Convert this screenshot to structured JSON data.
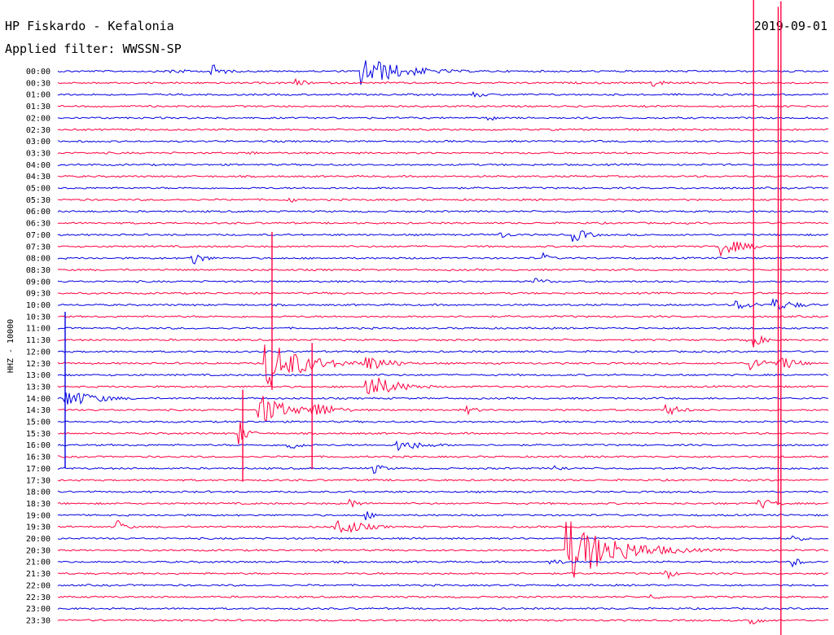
{
  "chart_data": {
    "type": "line",
    "title": "HP Fiskardo - Kefalonia",
    "date": "2019-09-01",
    "filter_label": "Applied filter: WWSSN-SP",
    "ylabel": "HHZ - 10000",
    "colors": {
      "even": "#0000e0",
      "odd": "#ff0040"
    },
    "rows": [
      "00:00",
      "00:30",
      "01:00",
      "01:30",
      "02:00",
      "02:30",
      "03:00",
      "03:30",
      "04:00",
      "04:30",
      "05:00",
      "05:30",
      "06:00",
      "06:30",
      "07:00",
      "07:30",
      "08:00",
      "08:30",
      "09:00",
      "09:30",
      "10:00",
      "10:30",
      "11:00",
      "11:30",
      "12:00",
      "12:30",
      "13:00",
      "13:30",
      "14:00",
      "14:30",
      "15:00",
      "15:30",
      "16:00",
      "16:30",
      "17:00",
      "17:30",
      "18:00",
      "18:30",
      "19:00",
      "19:30",
      "20:00",
      "20:30",
      "21:00",
      "21:30",
      "22:00",
      "22:30",
      "23:00",
      "23:30"
    ],
    "events": [
      {
        "row": 0,
        "x": 0.145,
        "a": 5,
        "d": 0.02
      },
      {
        "row": 0,
        "x": 0.2,
        "a": 10,
        "d": 0.015
      },
      {
        "row": 0,
        "x": 0.395,
        "a": 20,
        "d": 0.05
      },
      {
        "row": 1,
        "x": 0.77,
        "a": 6,
        "d": 0.02
      },
      {
        "row": 1,
        "x": 0.31,
        "a": 5,
        "d": 0.015
      },
      {
        "row": 2,
        "x": 0.54,
        "a": 4,
        "d": 0.02
      },
      {
        "row": 4,
        "x": 0.56,
        "a": 4,
        "d": 0.015
      },
      {
        "row": 7,
        "x": 0.25,
        "a": 4,
        "d": 0.01
      },
      {
        "row": 11,
        "x": 0.3,
        "a": 5,
        "d": 0.01
      },
      {
        "row": 14,
        "x": 0.57,
        "a": 5,
        "d": 0.02
      },
      {
        "row": 14,
        "x": 0.67,
        "a": 9,
        "d": 0.02
      },
      {
        "row": 15,
        "x": 0.86,
        "a": 12,
        "d": 0.03
      },
      {
        "row": 16,
        "x": 0.174,
        "a": 10,
        "d": 0.015
      },
      {
        "row": 16,
        "x": 0.63,
        "a": 7,
        "d": 0.01
      },
      {
        "row": 18,
        "x": 0.62,
        "a": 6,
        "d": 0.015
      },
      {
        "row": 20,
        "x": 0.88,
        "a": 6,
        "d": 0.03
      },
      {
        "row": 20,
        "x": 0.93,
        "a": 8,
        "d": 0.03
      },
      {
        "row": 23,
        "x": 0.895,
        "a": 14,
        "d": 0.015
      },
      {
        "row": 25,
        "x": 0.27,
        "a": 32,
        "d": 0.045
      },
      {
        "row": 25,
        "x": 0.4,
        "a": 12,
        "d": 0.03
      },
      {
        "row": 25,
        "x": 0.9,
        "a": 8,
        "d": 0.03
      },
      {
        "row": 25,
        "x": 0.94,
        "a": 10,
        "d": 0.02
      },
      {
        "row": 27,
        "x": 0.4,
        "a": 18,
        "d": 0.035
      },
      {
        "row": 28,
        "x": 0.01,
        "a": 12,
        "d": 0.04
      },
      {
        "row": 29,
        "x": 0.26,
        "a": 25,
        "d": 0.03
      },
      {
        "row": 29,
        "x": 0.33,
        "a": 14,
        "d": 0.025
      },
      {
        "row": 29,
        "x": 0.53,
        "a": 6,
        "d": 0.015
      },
      {
        "row": 29,
        "x": 0.79,
        "a": 8,
        "d": 0.02
      },
      {
        "row": 31,
        "x": 0.235,
        "a": 18,
        "d": 0.01
      },
      {
        "row": 32,
        "x": 0.3,
        "a": 6,
        "d": 0.02
      },
      {
        "row": 32,
        "x": 0.44,
        "a": 8,
        "d": 0.035
      },
      {
        "row": 34,
        "x": 0.41,
        "a": 7,
        "d": 0.015
      },
      {
        "row": 34,
        "x": 0.645,
        "a": 5,
        "d": 0.015
      },
      {
        "row": 37,
        "x": 0.38,
        "a": 6,
        "d": 0.015
      },
      {
        "row": 37,
        "x": 0.91,
        "a": 8,
        "d": 0.02
      },
      {
        "row": 38,
        "x": 0.4,
        "a": 7,
        "d": 0.01
      },
      {
        "row": 39,
        "x": 0.076,
        "a": 12,
        "d": 0.01
      },
      {
        "row": 39,
        "x": 0.36,
        "a": 14,
        "d": 0.03
      },
      {
        "row": 40,
        "x": 0.955,
        "a": 7,
        "d": 0.01
      },
      {
        "row": 41,
        "x": 0.66,
        "a": 40,
        "d": 0.06
      },
      {
        "row": 42,
        "x": 0.64,
        "a": 5,
        "d": 0.02
      },
      {
        "row": 42,
        "x": 0.955,
        "a": 7,
        "d": 0.01
      },
      {
        "row": 43,
        "x": 0.79,
        "a": 8,
        "d": 0.01
      },
      {
        "row": 45,
        "x": 0.77,
        "a": 6,
        "d": 0.01
      },
      {
        "row": 47,
        "x": 0.9,
        "a": 10,
        "d": 0.01
      }
    ],
    "spikes": [
      {
        "row": 27,
        "x": 0.0095,
        "up": 92,
        "down": 100,
        "color": "#0000e0"
      },
      {
        "row": 21,
        "x": 0.278,
        "up": 104,
        "down": 90,
        "color": "#ff0040"
      },
      {
        "row": 25,
        "x": 0.33,
        "up": 25,
        "down": 130,
        "color": "#ff0040"
      },
      {
        "row": 29,
        "x": 0.24,
        "up": 25,
        "down": 88,
        "color": "#ff0040"
      },
      {
        "row": 9,
        "x": 0.903,
        "up": 250,
        "down": 210,
        "color": "#ff0040"
      },
      {
        "row": 14,
        "x": 0.935,
        "up": 280,
        "down": 330,
        "color": "#ff0040"
      },
      {
        "row": 40,
        "x": 0.9385,
        "up": 660,
        "down": 120,
        "color": "#ff0040"
      }
    ]
  }
}
